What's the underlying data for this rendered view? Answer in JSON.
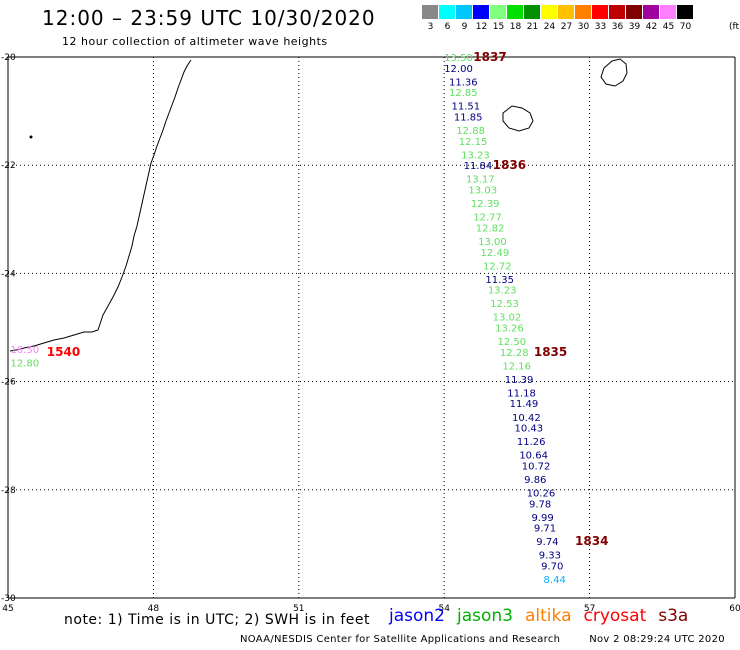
{
  "title": "12:00 – 23:59 UTC 10/30/2020",
  "subtitle": "12 hour collection of altimeter wave heights",
  "color_scale": {
    "values": [
      "3",
      "6",
      "9",
      "12",
      "15",
      "18",
      "21",
      "24",
      "27",
      "30",
      "33",
      "36",
      "39",
      "42",
      "45",
      "70"
    ],
    "colors": [
      "#888888",
      "#00ffff",
      "#00c8ff",
      "#0000ff",
      "#80ff80",
      "#00e000",
      "#009000",
      "#ffff00",
      "#ffc000",
      "#ff8000",
      "#ff0000",
      "#c00000",
      "#800000",
      "#a000a0",
      "#ff80ff",
      "#000000"
    ],
    "unit": "(ft)"
  },
  "axes": {
    "lon_ticks": [
      "45",
      "48",
      "51",
      "54",
      "57",
      "60"
    ],
    "lat_ticks": [
      "-20",
      "-22",
      "-24",
      "-26",
      "-28",
      "-30"
    ]
  },
  "chart_data": {
    "type": "scatter",
    "x_label": "",
    "y_label": "",
    "xlim": [
      45,
      60
    ],
    "ylim": [
      -30,
      -20
    ],
    "grid": true,
    "points": [
      {
        "lon": 54.0,
        "lat": -20.0,
        "swh": "13.50",
        "sat": "jason3"
      },
      {
        "lon": 54.0,
        "lat": -20.2,
        "swh": "12.00",
        "sat": "jason2"
      },
      {
        "lon": 54.1,
        "lat": -20.45,
        "swh": "11.36",
        "sat": "jason2"
      },
      {
        "lon": 54.1,
        "lat": -20.65,
        "swh": "12.85",
        "sat": "jason3"
      },
      {
        "lon": 54.15,
        "lat": -20.9,
        "swh": "11.51",
        "sat": "jason2"
      },
      {
        "lon": 54.2,
        "lat": -21.1,
        "swh": "11.85",
        "sat": "jason2"
      },
      {
        "lon": 54.25,
        "lat": -21.35,
        "swh": "12.88",
        "sat": "jason3"
      },
      {
        "lon": 54.3,
        "lat": -21.55,
        "swh": "12.15",
        "sat": "jason3"
      },
      {
        "lon": 54.35,
        "lat": -21.8,
        "swh": "13.23",
        "sat": "jason3"
      },
      {
        "lon": 54.4,
        "lat": -22.0,
        "swh": "11.84",
        "sat": "jason2"
      },
      {
        "lon": 54.45,
        "lat": -22.25,
        "swh": "13.17",
        "sat": "jason3"
      },
      {
        "lon": 54.5,
        "lat": -22.45,
        "swh": "13.03",
        "sat": "jason3"
      },
      {
        "lon": 54.55,
        "lat": -22.7,
        "swh": "12.39",
        "sat": "jason3"
      },
      {
        "lon": 54.6,
        "lat": -22.95,
        "swh": "12.77",
        "sat": "jason3"
      },
      {
        "lon": 54.65,
        "lat": -23.15,
        "swh": "12.82",
        "sat": "jason3"
      },
      {
        "lon": 54.7,
        "lat": -23.4,
        "swh": "13.00",
        "sat": "jason3"
      },
      {
        "lon": 54.75,
        "lat": -23.6,
        "swh": "12.49",
        "sat": "jason3"
      },
      {
        "lon": 54.8,
        "lat": -23.85,
        "swh": "12.72",
        "sat": "jason3"
      },
      {
        "lon": 54.85,
        "lat": -24.1,
        "swh": "11.35",
        "sat": "jason2"
      },
      {
        "lon": 54.9,
        "lat": -24.3,
        "swh": "13.23",
        "sat": "jason3"
      },
      {
        "lon": 54.95,
        "lat": -24.55,
        "swh": "12.53",
        "sat": "jason3"
      },
      {
        "lon": 55.0,
        "lat": -24.8,
        "swh": "13.02",
        "sat": "jason3"
      },
      {
        "lon": 55.05,
        "lat": -25.0,
        "swh": "13.26",
        "sat": "jason3"
      },
      {
        "lon": 55.1,
        "lat": -25.25,
        "swh": "12.50",
        "sat": "jason3"
      },
      {
        "lon": 55.15,
        "lat": -25.45,
        "swh": "12.28",
        "sat": "jason3"
      },
      {
        "lon": 55.2,
        "lat": -25.7,
        "swh": "12.16",
        "sat": "jason3"
      },
      {
        "lon": 55.25,
        "lat": -25.95,
        "swh": "11.39",
        "sat": "jason2"
      },
      {
        "lon": 55.3,
        "lat": -26.2,
        "swh": "11.18",
        "sat": "jason2"
      },
      {
        "lon": 55.35,
        "lat": -26.4,
        "swh": "11.49",
        "sat": "jason2"
      },
      {
        "lon": 55.4,
        "lat": -26.65,
        "swh": "10.42",
        "sat": "jason2"
      },
      {
        "lon": 55.45,
        "lat": -26.85,
        "swh": "10.43",
        "sat": "jason2"
      },
      {
        "lon": 55.5,
        "lat": -27.1,
        "swh": "11.26",
        "sat": "jason2"
      },
      {
        "lon": 55.55,
        "lat": -27.35,
        "swh": "10.64",
        "sat": "jason2"
      },
      {
        "lon": 55.6,
        "lat": -27.55,
        "swh": "10.72",
        "sat": "jason2"
      },
      {
        "lon": 55.65,
        "lat": -27.8,
        "swh": "9.86",
        "sat": "jason2"
      },
      {
        "lon": 55.7,
        "lat": -28.05,
        "swh": "10.26",
        "sat": "jason2"
      },
      {
        "lon": 55.75,
        "lat": -28.25,
        "swh": "9.78",
        "sat": "jason2"
      },
      {
        "lon": 55.8,
        "lat": -28.5,
        "swh": "9.99",
        "sat": "jason2"
      },
      {
        "lon": 55.85,
        "lat": -28.7,
        "swh": "9.71",
        "sat": "jason2"
      },
      {
        "lon": 55.9,
        "lat": -28.95,
        "swh": "9.74",
        "sat": "jason2"
      },
      {
        "lon": 55.95,
        "lat": -29.2,
        "swh": "9.33",
        "sat": "jason2"
      },
      {
        "lon": 56.0,
        "lat": -29.4,
        "swh": "9.70",
        "sat": "jason2"
      },
      {
        "lon": 56.05,
        "lat": -29.65,
        "swh": "8.44",
        "sat": "scale_cyan"
      },
      {
        "lon": 45.05,
        "lat": -25.4,
        "swh": "16.50",
        "sat": "scale_pink"
      },
      {
        "lon": 45.05,
        "lat": -25.65,
        "swh": "12.80",
        "sat": "jason3"
      }
    ],
    "time_tags": [
      {
        "lon": 54.6,
        "lat": -20.0,
        "text": "1837",
        "color": "#800000"
      },
      {
        "lon": 55.0,
        "lat": -22.0,
        "text": "1836",
        "color": "#800000"
      },
      {
        "lon": 55.85,
        "lat": -25.45,
        "text": "1835",
        "color": "#800000"
      },
      {
        "lon": 56.7,
        "lat": -28.95,
        "text": "1834",
        "color": "#800000"
      },
      {
        "lon": 45.8,
        "lat": -25.45,
        "text": "1540",
        "color": "#ff0000"
      }
    ]
  },
  "note": "note: 1) Time is in UTC; 2) SWH is in feet",
  "satellites": [
    {
      "key": "jason2",
      "label": "jason2",
      "color": "#0000ff"
    },
    {
      "key": "jason3",
      "label": "jason3",
      "color": "#00b000"
    },
    {
      "key": "altika",
      "label": "altika",
      "color": "#ff8000"
    },
    {
      "key": "cryosat",
      "label": "cryosat",
      "color": "#ff0000"
    },
    {
      "key": "s3a",
      "label": "s3a",
      "color": "#800000"
    }
  ],
  "point_colors": {
    "jason2": "#000080",
    "jason3": "#60e060",
    "scale_cyan": "#00b0ff",
    "scale_pink": "#ff80ff"
  },
  "credit": "NOAA/NESDIS Center for Satellite Applications and Research",
  "timestamp": "Nov  2 08:29:24 UTC 2020"
}
